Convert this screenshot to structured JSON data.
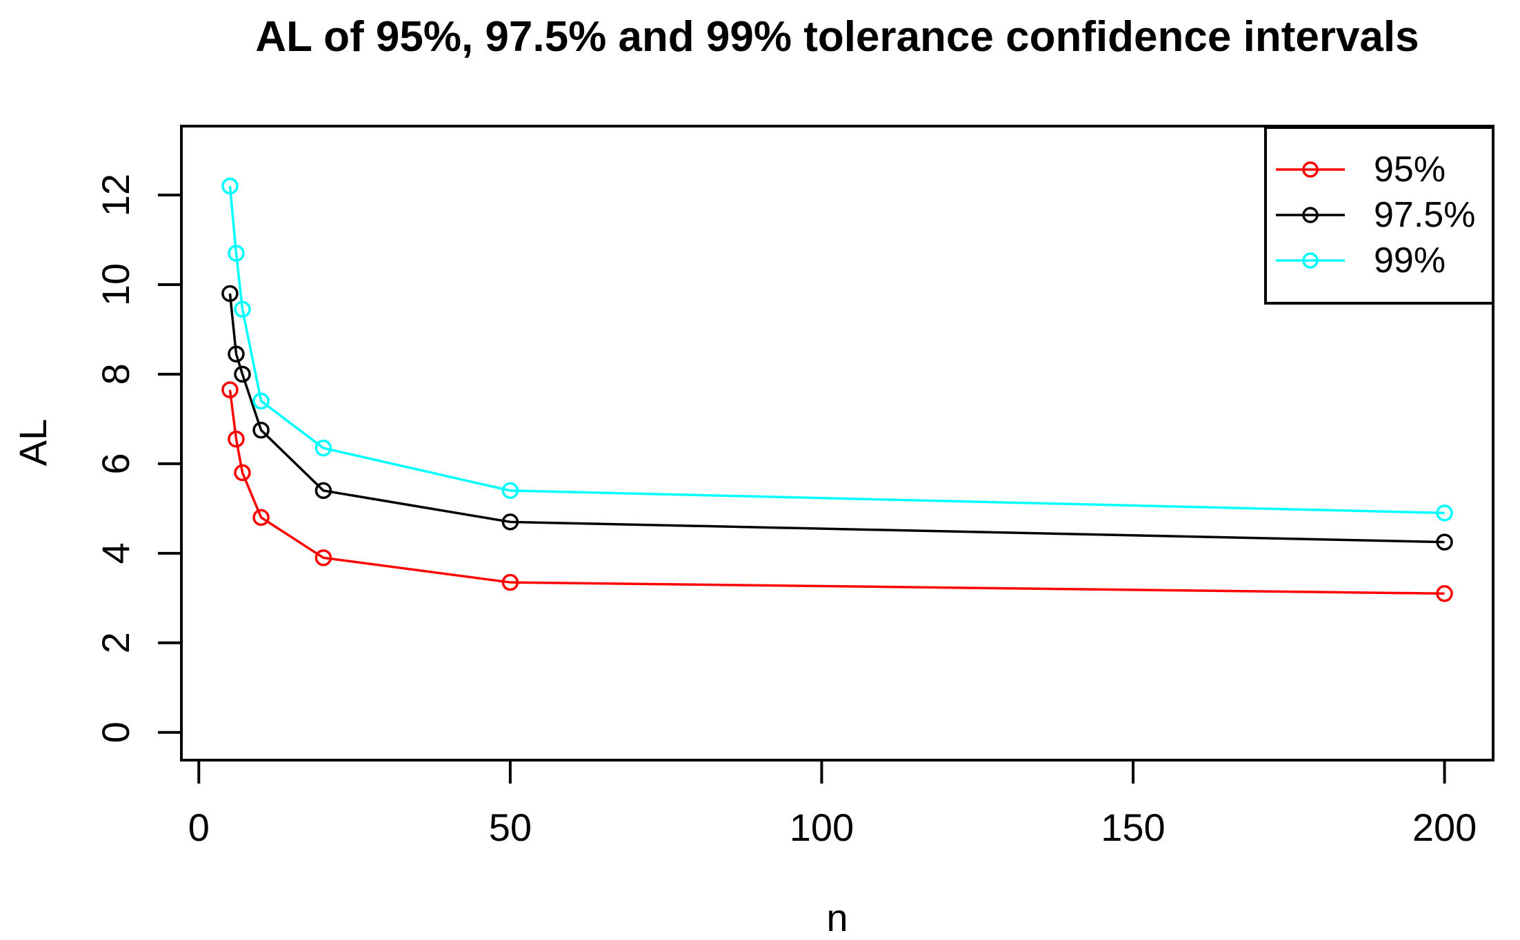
{
  "chart_data": {
    "type": "line",
    "title": "AL of 95%, 97.5% and 99% tolerance confidence intervals",
    "xlabel": "n",
    "ylabel": "AL",
    "x": [
      5,
      6,
      7,
      10,
      20,
      50,
      200
    ],
    "series": [
      {
        "name": "95%",
        "color": "#FF0000",
        "marker": "open-circle",
        "values": [
          7.65,
          6.55,
          5.8,
          4.8,
          3.9,
          3.35,
          3.1
        ]
      },
      {
        "name": "97.5%",
        "color": "#000000",
        "marker": "open-circle",
        "values": [
          9.8,
          8.45,
          8.0,
          6.75,
          5.4,
          4.7,
          4.25
        ]
      },
      {
        "name": "99%",
        "color": "#00FFFF",
        "marker": "open-circle",
        "values": [
          12.2,
          10.7,
          9.45,
          7.4,
          6.35,
          5.4,
          4.9
        ]
      }
    ],
    "x_ticks": [
      0,
      50,
      100,
      150,
      200
    ],
    "y_ticks": [
      0,
      2,
      4,
      6,
      8,
      10,
      12
    ],
    "xlim": [
      -2.8,
      207.8
    ],
    "ylim": [
      -0.62,
      13.54
    ],
    "grid": false,
    "legend_position": "top-right",
    "background_color": "#FFFFFF",
    "axis_color": "#000000"
  }
}
